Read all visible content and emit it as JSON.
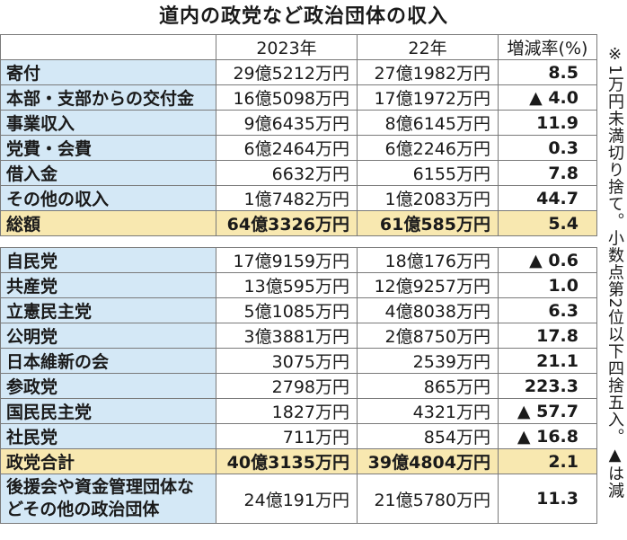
{
  "title": "道内の政党など政治団体の収入",
  "headers": [
    "",
    "2023年",
    "22年",
    "増減率(%)"
  ],
  "income_rows": [
    {
      "label": "寄付",
      "y2023": "29億5212万円",
      "y2022": "27億1982万円",
      "rate": "8.5"
    },
    {
      "label": "本部・支部からの交付金",
      "y2023": "16億5098万円",
      "y2022": "17億1972万円",
      "rate": "▲ 4.0"
    },
    {
      "label": "事業収入",
      "y2023": "9億6435万円",
      "y2022": "8億6145万円",
      "rate": "11.9"
    },
    {
      "label": "党費・会費",
      "y2023": "6億2464万円",
      "y2022": "6億2246万円",
      "rate": "0.3"
    },
    {
      "label": "借入金",
      "y2023": "6632万円",
      "y2022": "6155万円",
      "rate": "7.8"
    },
    {
      "label": "その他の収入",
      "y2023": "1億7482万円",
      "y2022": "1億2083万円",
      "rate": "44.7"
    }
  ],
  "income_total": {
    "label": "総額",
    "y2023": "64億3326万円",
    "y2022": "61億585万円",
    "rate": "5.4"
  },
  "party_rows": [
    {
      "label": "自民党",
      "y2023": "17億9159万円",
      "y2022": "18億176万円",
      "rate": "▲ 0.6"
    },
    {
      "label": "共産党",
      "y2023": "13億595万円",
      "y2022": "12億9257万円",
      "rate": "1.0"
    },
    {
      "label": "立憲民主党",
      "y2023": "5億1085万円",
      "y2022": "4億8038万円",
      "rate": "6.3"
    },
    {
      "label": "公明党",
      "y2023": "3億3881万円",
      "y2022": "2億8750万円",
      "rate": "17.8"
    },
    {
      "label": "日本維新の会",
      "y2023": "3075万円",
      "y2022": "2539万円",
      "rate": "21.1"
    },
    {
      "label": "参政党",
      "y2023": "2798万円",
      "y2022": "865万円",
      "rate": "223.3"
    },
    {
      "label": "国民民主党",
      "y2023": "1827万円",
      "y2022": "4321万円",
      "rate": "▲ 57.7"
    },
    {
      "label": "社民党",
      "y2023": "711万円",
      "y2022": "854万円",
      "rate": "▲ 16.8"
    }
  ],
  "party_total": {
    "label": "政党合計",
    "y2023": "40億3135万円",
    "y2022": "39億4804万円",
    "rate": "2.1"
  },
  "other_groups": {
    "label": "後援会や資金管理団体などその他の政治団体",
    "y2023": "24億191万円",
    "y2022": "21億5780万円",
    "rate": "11.3"
  },
  "note": "※1万円未満切り捨て。小数点第2位以下四捨五入。▲は減",
  "colors": {
    "label_bg": "#d4e8f6",
    "total_bg": "#f8e8b0",
    "border": "#7a7a7a"
  }
}
